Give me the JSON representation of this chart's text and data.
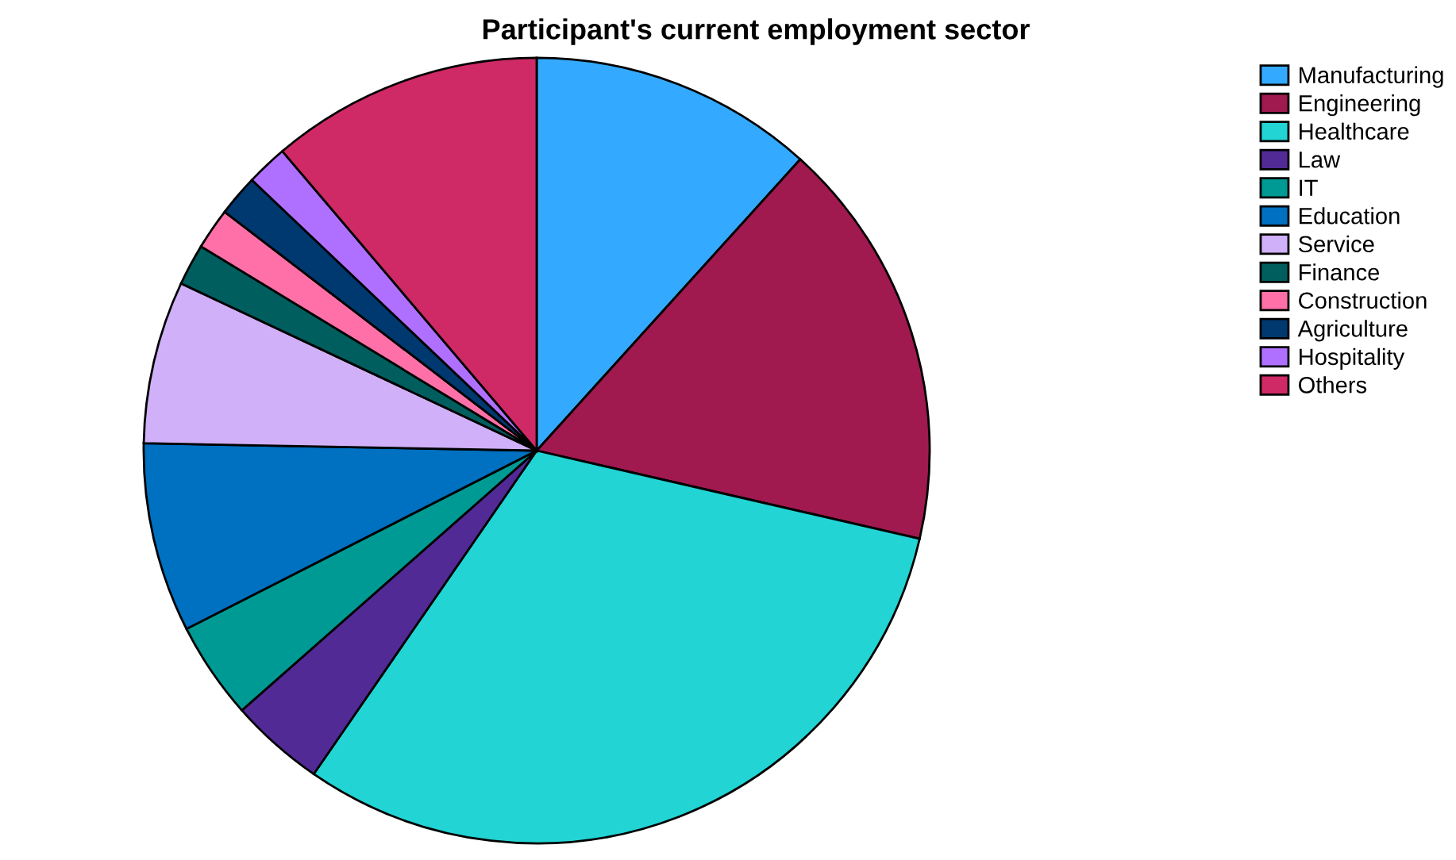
{
  "chart_data": {
    "type": "pie",
    "title": "Participant's current employment sector",
    "categories": [
      "Manufacturing",
      "Engineering",
      "Healthcare",
      "Law",
      "IT",
      "Education",
      "Service",
      "Finance",
      "Construction",
      "Agriculture",
      "Hospitality",
      "Others"
    ],
    "values": [
      11.7,
      16.9,
      31.0,
      3.9,
      4.0,
      7.8,
      6.7,
      1.7,
      1.7,
      1.7,
      1.7,
      11.2
    ],
    "colors": [
      "#33aaff",
      "#a0194f",
      "#22d4d4",
      "#512a96",
      "#009a94",
      "#0070c0",
      "#d0b0f8",
      "#005e5e",
      "#ff70a8",
      "#003870",
      "#b070ff",
      "#d02a66"
    ],
    "legend": "top right"
  }
}
